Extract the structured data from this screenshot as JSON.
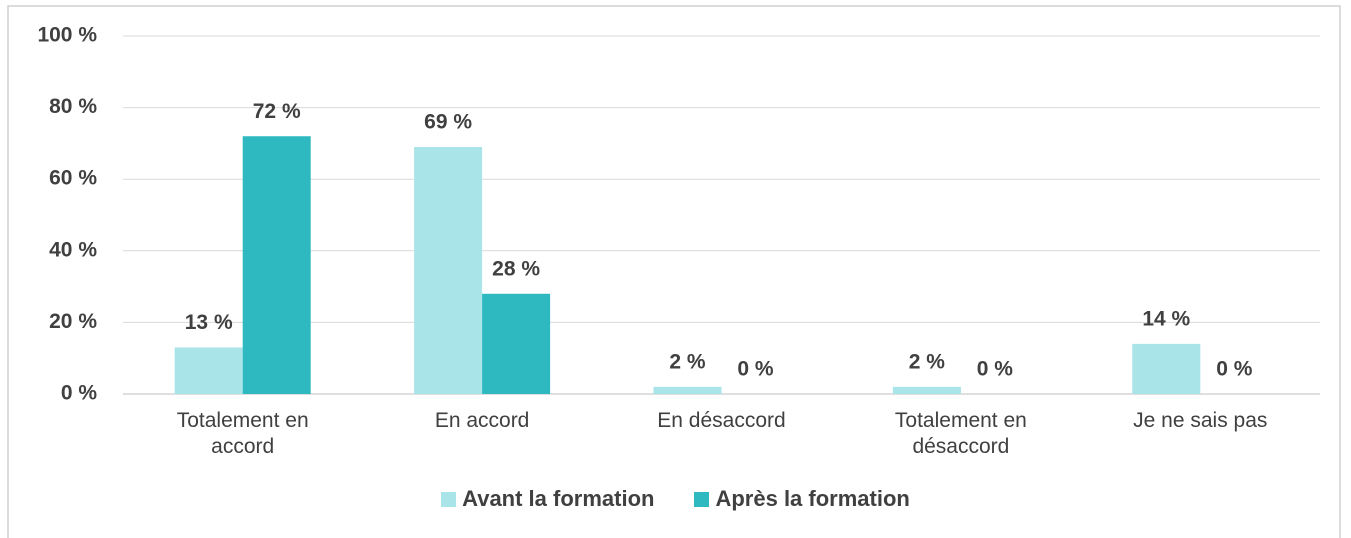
{
  "chart_data": {
    "type": "bar",
    "categories": [
      "Totalement en accord",
      "En accord",
      "En désaccord",
      "Totalement en désaccord",
      "Je ne sais pas"
    ],
    "series": [
      {
        "name": "Avant la formation",
        "color": "#a8e4e8",
        "values": [
          13,
          69,
          2,
          2,
          14
        ],
        "value_labels": [
          "13 %",
          "69 %",
          "2 %",
          "2 %",
          "14 %"
        ]
      },
      {
        "name": "Après la formation",
        "color": "#2eb8c0",
        "values": [
          72,
          28,
          0,
          0,
          0
        ],
        "value_labels": [
          "72 %",
          "28 %",
          "0 %",
          "0 %",
          "0 %"
        ]
      }
    ],
    "ylim": [
      0,
      100
    ],
    "yticks": [
      {
        "value": 0,
        "label": "0 %"
      },
      {
        "value": 20,
        "label": "20 %"
      },
      {
        "value": 40,
        "label": "40 %"
      },
      {
        "value": 60,
        "label": "60 %"
      },
      {
        "value": 80,
        "label": "80 %"
      },
      {
        "value": 100,
        "label": "100 %"
      }
    ],
    "grid": true,
    "legend": "bottom"
  }
}
